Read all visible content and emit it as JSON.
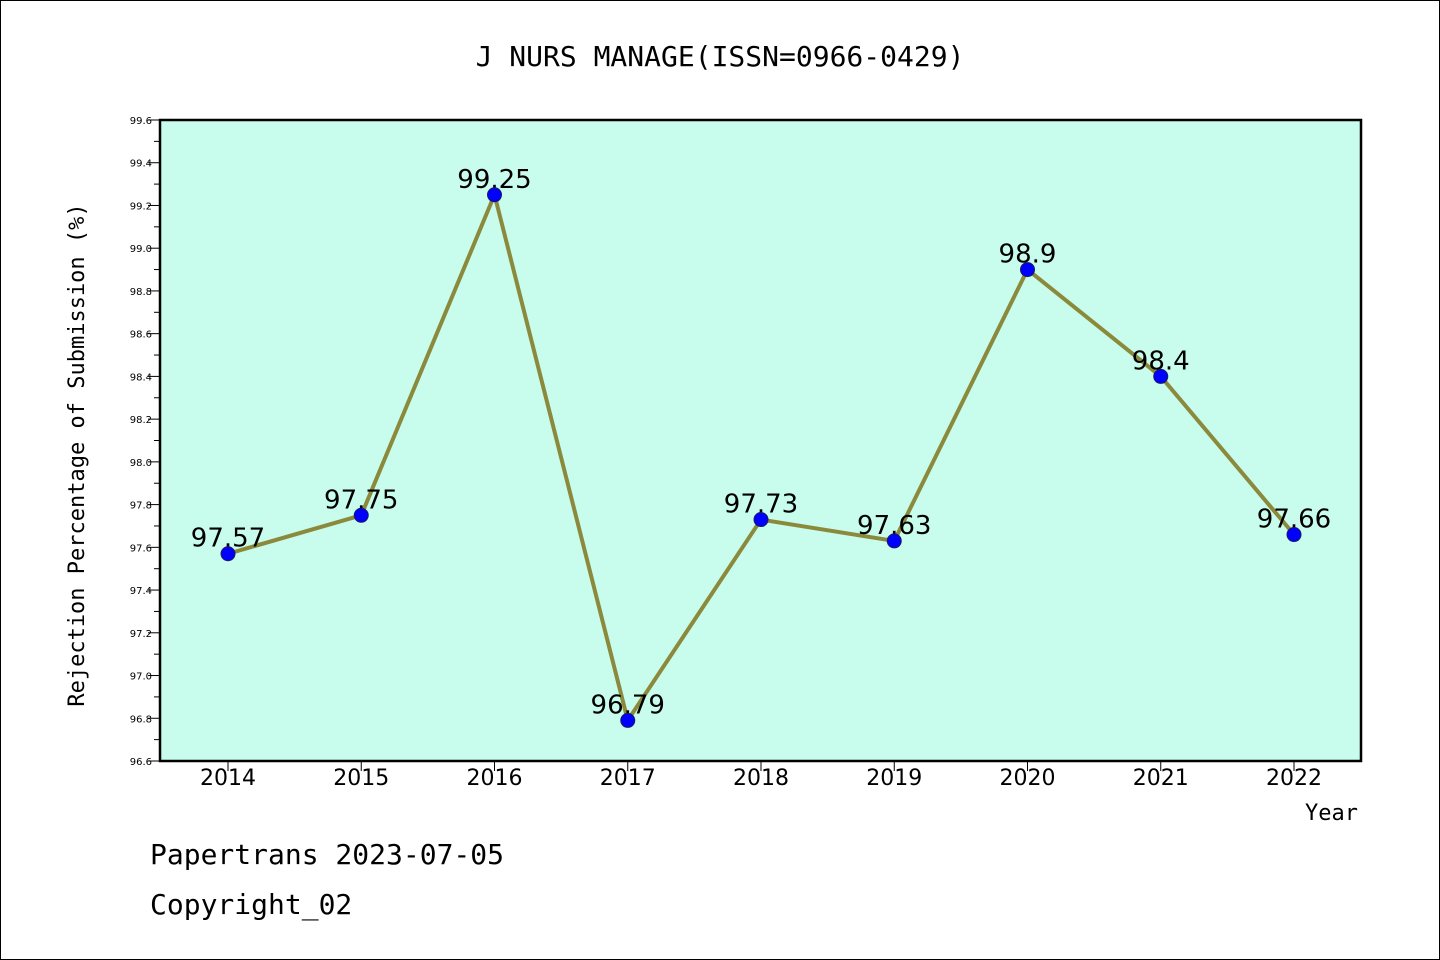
{
  "chart_data": {
    "type": "line",
    "title": "J NURS MANAGE(ISSN=0966-0429)",
    "xlabel": "Year",
    "ylabel": "Rejection Percentage of Submission (%)",
    "categories": [
      "2014",
      "2015",
      "2016",
      "2017",
      "2018",
      "2019",
      "2020",
      "2021",
      "2022"
    ],
    "series": [
      {
        "values": [
          97.57,
          97.75,
          99.25,
          96.79,
          97.73,
          97.63,
          98.9,
          98.4,
          97.66
        ],
        "labels": [
          "97.57",
          "97.75",
          "99.25",
          "96.79",
          "97.73",
          "97.63",
          "98.9",
          "98.4",
          "97.66"
        ]
      }
    ],
    "ylim": [
      96.6,
      99.6
    ],
    "yticks": [
      "96.6",
      "96.8",
      "97.0",
      "97.2",
      "97.4",
      "97.6",
      "97.8",
      "98.0",
      "98.2",
      "98.4",
      "98.6",
      "98.8",
      "99.0",
      "99.2",
      "99.4",
      "99.6"
    ],
    "grid": false,
    "legend": "none",
    "colors": {
      "plot_background": "#c8fcec",
      "line": "#8b8a3c",
      "marker": "#0000ff",
      "marker_edge": "#1a1a66"
    }
  },
  "footer": {
    "line1": "Papertrans 2023-07-05",
    "line2": "Copyright_02"
  }
}
